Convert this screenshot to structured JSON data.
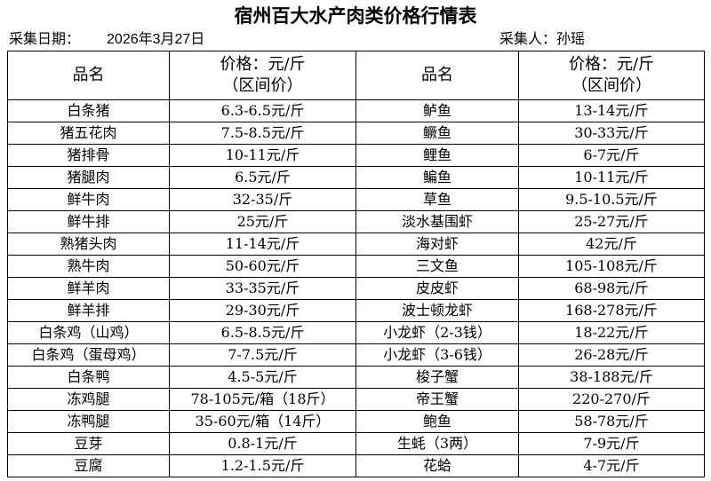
{
  "title": "宿州百大水产肉类价格行情表",
  "date_label": "采集日期：",
  "date_value": "2026年3月27日",
  "collector_label": "采集人：",
  "collector_value": "孙瑶",
  "headers": {
    "name": "品名",
    "price_line1": "价格：元/斤",
    "price_line2": "（区间价）"
  },
  "rows": [
    {
      "left_name": "白条猪",
      "left_price": "6.3-6.5元/斤",
      "right_name": "鲈鱼",
      "right_price": "13-14元/斤"
    },
    {
      "left_name": "猪五花肉",
      "left_price": "7.5-8.5元/斤",
      "right_name": "鳜鱼",
      "right_price": "30-33元/斤"
    },
    {
      "left_name": "猪排骨",
      "left_price": "10-11元/斤",
      "right_name": "鲤鱼",
      "right_price": "6-7元/斤"
    },
    {
      "left_name": "猪腿肉",
      "left_price": "6.5元/斤",
      "right_name": "鳊鱼",
      "right_price": "10-11元/斤"
    },
    {
      "left_name": "鲜牛肉",
      "left_price": "32-35/斤",
      "right_name": "草鱼",
      "right_price": "9.5-10.5元/斤"
    },
    {
      "left_name": "鲜牛排",
      "left_price": "25元/斤",
      "right_name": "淡水基围虾",
      "right_price": "25-27元/斤"
    },
    {
      "left_name": "熟猪头肉",
      "left_price": "11-14元/斤",
      "right_name": "海对虾",
      "right_price": "42元/斤"
    },
    {
      "left_name": "熟牛肉",
      "left_price": "50-60元/斤",
      "right_name": "三文鱼",
      "right_price": "105-108元/斤"
    },
    {
      "left_name": "鲜羊肉",
      "left_price": "33-35元/斤",
      "right_name": "皮皮虾",
      "right_price": "68-98元/斤"
    },
    {
      "left_name": "鲜羊排",
      "left_price": "29-30元/斤",
      "right_name": "波士顿龙虾",
      "right_price": "168-278元/斤"
    },
    {
      "left_name": "白条鸡（山鸡）",
      "left_price": "6.5-8.5元/斤",
      "right_name": "小龙虾（2-3钱）",
      "right_price": "18-22元/斤"
    },
    {
      "left_name": "白条鸡（蛋母鸡）",
      "left_price": "7-7.5元/斤",
      "right_name": "小龙虾（3-6钱）",
      "right_price": "26-28元/斤"
    },
    {
      "left_name": "白条鸭",
      "left_price": "4.5-5元/斤",
      "right_name": "梭子蟹",
      "right_price": "38-188元/斤"
    },
    {
      "left_name": "冻鸡腿",
      "left_price": "78-105元/箱（18斤）",
      "right_name": "帝王蟹",
      "right_price": "220-270/斤"
    },
    {
      "left_name": "冻鸭腿",
      "left_price": "35-60元/箱（14斤）",
      "right_name": "鲍鱼",
      "right_price": "58-78元/斤"
    },
    {
      "left_name": "豆芽",
      "left_price": "0.8-1元/斤",
      "right_name": "生蚝（3两）",
      "right_price": "7-9元/斤"
    },
    {
      "left_name": "豆腐",
      "left_price": "1.2-1.5元/斤",
      "right_name": "花蛤",
      "right_price": "4-7元/斤"
    }
  ]
}
